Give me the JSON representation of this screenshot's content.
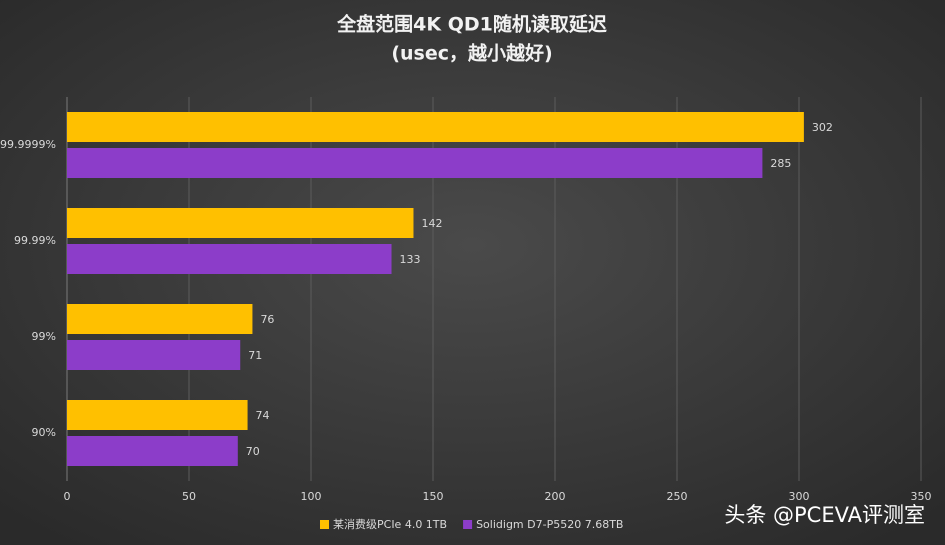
{
  "chart_data": {
    "type": "bar",
    "orientation": "horizontal",
    "title": "全盘范围4K  QD1随机读取延迟",
    "subtitle": "(usec，越小越好)",
    "categories": [
      "99.9999%",
      "99.99%",
      "99%",
      "90%"
    ],
    "series": [
      {
        "name": "某消费级PCIe 4.0 1TB",
        "color": "#ffc000",
        "values": [
          302,
          142,
          76,
          74
        ]
      },
      {
        "name": "Solidigm D7-P5520 7.68TB",
        "color": "#8c3dc9",
        "values": [
          285,
          133,
          71,
          70
        ]
      }
    ],
    "xlim": [
      0,
      350
    ],
    "xticks": [
      0,
      50,
      100,
      150,
      200,
      250,
      300,
      350
    ],
    "grid": true,
    "legend": "bottom",
    "watermark": "头条 @PCEVA评测室"
  }
}
